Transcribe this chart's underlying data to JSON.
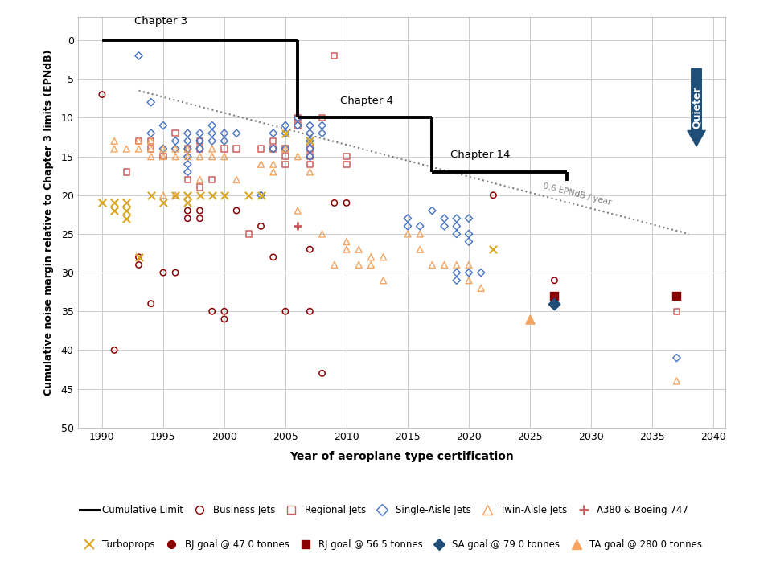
{
  "title": "",
  "xlabel": "Year of aeroplane type certification",
  "ylabel": "Cumulative noise margin relative to Chapter 3 limits (EPNdB)",
  "xlim": [
    1988,
    2041
  ],
  "ylim": [
    50,
    -3
  ],
  "xticks": [
    1990,
    1995,
    2000,
    2005,
    2010,
    2015,
    2020,
    2025,
    2030,
    2035,
    2040
  ],
  "yticks": [
    0,
    5,
    10,
    15,
    20,
    25,
    30,
    35,
    40,
    45,
    50
  ],
  "dotted_line_x": [
    1993,
    2038
  ],
  "dotted_line_y": [
    6.5,
    25.0
  ],
  "business_jets": {
    "color": "#8B0000",
    "marker": "o",
    "size": 28,
    "data": [
      [
        1990,
        7
      ],
      [
        1991,
        40
      ],
      [
        1993,
        28
      ],
      [
        1993,
        29
      ],
      [
        1994,
        34
      ],
      [
        1995,
        30
      ],
      [
        1996,
        30
      ],
      [
        1997,
        22
      ],
      [
        1997,
        23
      ],
      [
        1998,
        22
      ],
      [
        1998,
        23
      ],
      [
        1999,
        35
      ],
      [
        2000,
        35
      ],
      [
        2000,
        36
      ],
      [
        2001,
        22
      ],
      [
        2003,
        24
      ],
      [
        2004,
        28
      ],
      [
        2005,
        35
      ],
      [
        2007,
        27
      ],
      [
        2007,
        35
      ],
      [
        2008,
        43
      ],
      [
        2009,
        21
      ],
      [
        2010,
        21
      ],
      [
        2022,
        20
      ],
      [
        2027,
        31
      ]
    ]
  },
  "regional_jets": {
    "color": "#CD5C5C",
    "marker": "s",
    "size": 28,
    "data": [
      [
        1992,
        17
      ],
      [
        1993,
        13
      ],
      [
        1994,
        13
      ],
      [
        1994,
        14
      ],
      [
        1995,
        15
      ],
      [
        1996,
        12
      ],
      [
        1997,
        14
      ],
      [
        1997,
        18
      ],
      [
        1998,
        13
      ],
      [
        1998,
        14
      ],
      [
        1998,
        19
      ],
      [
        1999,
        18
      ],
      [
        2000,
        14
      ],
      [
        2001,
        14
      ],
      [
        2002,
        25
      ],
      [
        2003,
        14
      ],
      [
        2004,
        13
      ],
      [
        2004,
        14
      ],
      [
        2005,
        14
      ],
      [
        2005,
        15
      ],
      [
        2005,
        16
      ],
      [
        2006,
        10
      ],
      [
        2006,
        11
      ],
      [
        2007,
        14
      ],
      [
        2007,
        15
      ],
      [
        2007,
        16
      ],
      [
        2008,
        10
      ],
      [
        2009,
        2
      ],
      [
        2010,
        15
      ],
      [
        2010,
        16
      ],
      [
        2037,
        35
      ]
    ]
  },
  "single_aisle_jets": {
    "color": "#4472C4",
    "marker": "D",
    "size": 22,
    "data": [
      [
        1993,
        2
      ],
      [
        1994,
        8
      ],
      [
        1994,
        12
      ],
      [
        1995,
        11
      ],
      [
        1995,
        14
      ],
      [
        1996,
        13
      ],
      [
        1996,
        14
      ],
      [
        1997,
        12
      ],
      [
        1997,
        13
      ],
      [
        1997,
        14
      ],
      [
        1997,
        15
      ],
      [
        1997,
        16
      ],
      [
        1997,
        17
      ],
      [
        1998,
        12
      ],
      [
        1998,
        13
      ],
      [
        1998,
        14
      ],
      [
        1999,
        11
      ],
      [
        1999,
        12
      ],
      [
        1999,
        13
      ],
      [
        2000,
        12
      ],
      [
        2000,
        13
      ],
      [
        2001,
        12
      ],
      [
        2003,
        20
      ],
      [
        2004,
        12
      ],
      [
        2004,
        14
      ],
      [
        2005,
        11
      ],
      [
        2005,
        12
      ],
      [
        2005,
        14
      ],
      [
        2006,
        10
      ],
      [
        2006,
        11
      ],
      [
        2007,
        11
      ],
      [
        2007,
        12
      ],
      [
        2007,
        13
      ],
      [
        2007,
        14
      ],
      [
        2007,
        15
      ],
      [
        2008,
        11
      ],
      [
        2008,
        12
      ],
      [
        2015,
        23
      ],
      [
        2015,
        24
      ],
      [
        2016,
        24
      ],
      [
        2017,
        22
      ],
      [
        2018,
        23
      ],
      [
        2018,
        24
      ],
      [
        2019,
        23
      ],
      [
        2019,
        24
      ],
      [
        2019,
        25
      ],
      [
        2019,
        30
      ],
      [
        2019,
        31
      ],
      [
        2020,
        23
      ],
      [
        2020,
        25
      ],
      [
        2020,
        26
      ],
      [
        2020,
        30
      ],
      [
        2021,
        30
      ],
      [
        2027,
        34
      ],
      [
        2037,
        41
      ]
    ]
  },
  "twin_aisle_jets": {
    "color": "#F4A460",
    "marker": "^",
    "size": 32,
    "data": [
      [
        1991,
        13
      ],
      [
        1991,
        14
      ],
      [
        1992,
        14
      ],
      [
        1993,
        13
      ],
      [
        1993,
        14
      ],
      [
        1994,
        13
      ],
      [
        1994,
        14
      ],
      [
        1994,
        15
      ],
      [
        1995,
        14
      ],
      [
        1995,
        15
      ],
      [
        1995,
        20
      ],
      [
        1996,
        14
      ],
      [
        1996,
        15
      ],
      [
        1996,
        20
      ],
      [
        1997,
        14
      ],
      [
        1997,
        15
      ],
      [
        1998,
        15
      ],
      [
        1998,
        18
      ],
      [
        1999,
        14
      ],
      [
        1999,
        15
      ],
      [
        2000,
        15
      ],
      [
        2001,
        18
      ],
      [
        2003,
        16
      ],
      [
        2004,
        16
      ],
      [
        2004,
        17
      ],
      [
        2005,
        14
      ],
      [
        2006,
        15
      ],
      [
        2006,
        22
      ],
      [
        2007,
        17
      ],
      [
        2008,
        25
      ],
      [
        2009,
        29
      ],
      [
        2010,
        26
      ],
      [
        2010,
        27
      ],
      [
        2011,
        27
      ],
      [
        2011,
        29
      ],
      [
        2012,
        28
      ],
      [
        2012,
        29
      ],
      [
        2013,
        28
      ],
      [
        2013,
        31
      ],
      [
        2015,
        25
      ],
      [
        2016,
        25
      ],
      [
        2016,
        27
      ],
      [
        2017,
        29
      ],
      [
        2018,
        29
      ],
      [
        2019,
        29
      ],
      [
        2020,
        29
      ],
      [
        2020,
        31
      ],
      [
        2021,
        32
      ],
      [
        2025,
        36
      ],
      [
        2037,
        44
      ]
    ]
  },
  "a380_boeing": {
    "color": "#CD5C5C",
    "marker": "P",
    "size": 55,
    "data": [
      [
        2006,
        24
      ]
    ]
  },
  "turboprops": {
    "color": "#DAA520",
    "marker": "x",
    "size": 45,
    "data": [
      [
        1990,
        21
      ],
      [
        1991,
        21
      ],
      [
        1991,
        22
      ],
      [
        1992,
        21
      ],
      [
        1992,
        22
      ],
      [
        1992,
        23
      ],
      [
        1993,
        28
      ],
      [
        1994,
        20
      ],
      [
        1995,
        21
      ],
      [
        1996,
        20
      ],
      [
        1997,
        20
      ],
      [
        1997,
        21
      ],
      [
        1998,
        20
      ],
      [
        1999,
        20
      ],
      [
        2000,
        20
      ],
      [
        2002,
        20
      ],
      [
        2003,
        20
      ],
      [
        2005,
        12
      ],
      [
        2007,
        13
      ],
      [
        2022,
        27
      ]
    ]
  },
  "bj_goal": {
    "color": "#8B0000",
    "marker": "o",
    "size": 55,
    "data": [
      [
        2027,
        34
      ]
    ]
  },
  "rj_goal": {
    "color": "#8B0000",
    "marker": "s",
    "size": 55,
    "data": [
      [
        2027,
        33
      ],
      [
        2037,
        33
      ]
    ]
  },
  "sa_goal": {
    "color": "#1F4E79",
    "marker": "D",
    "size": 55,
    "data": [
      [
        2027,
        34
      ]
    ]
  },
  "ta_goal": {
    "color": "#F4A460",
    "marker": "^",
    "size": 65,
    "data": [
      [
        2025,
        36
      ]
    ]
  },
  "bg_color": "#ffffff",
  "grid_color": "#cccccc",
  "quieter_arrow_color": "#1F4E79"
}
